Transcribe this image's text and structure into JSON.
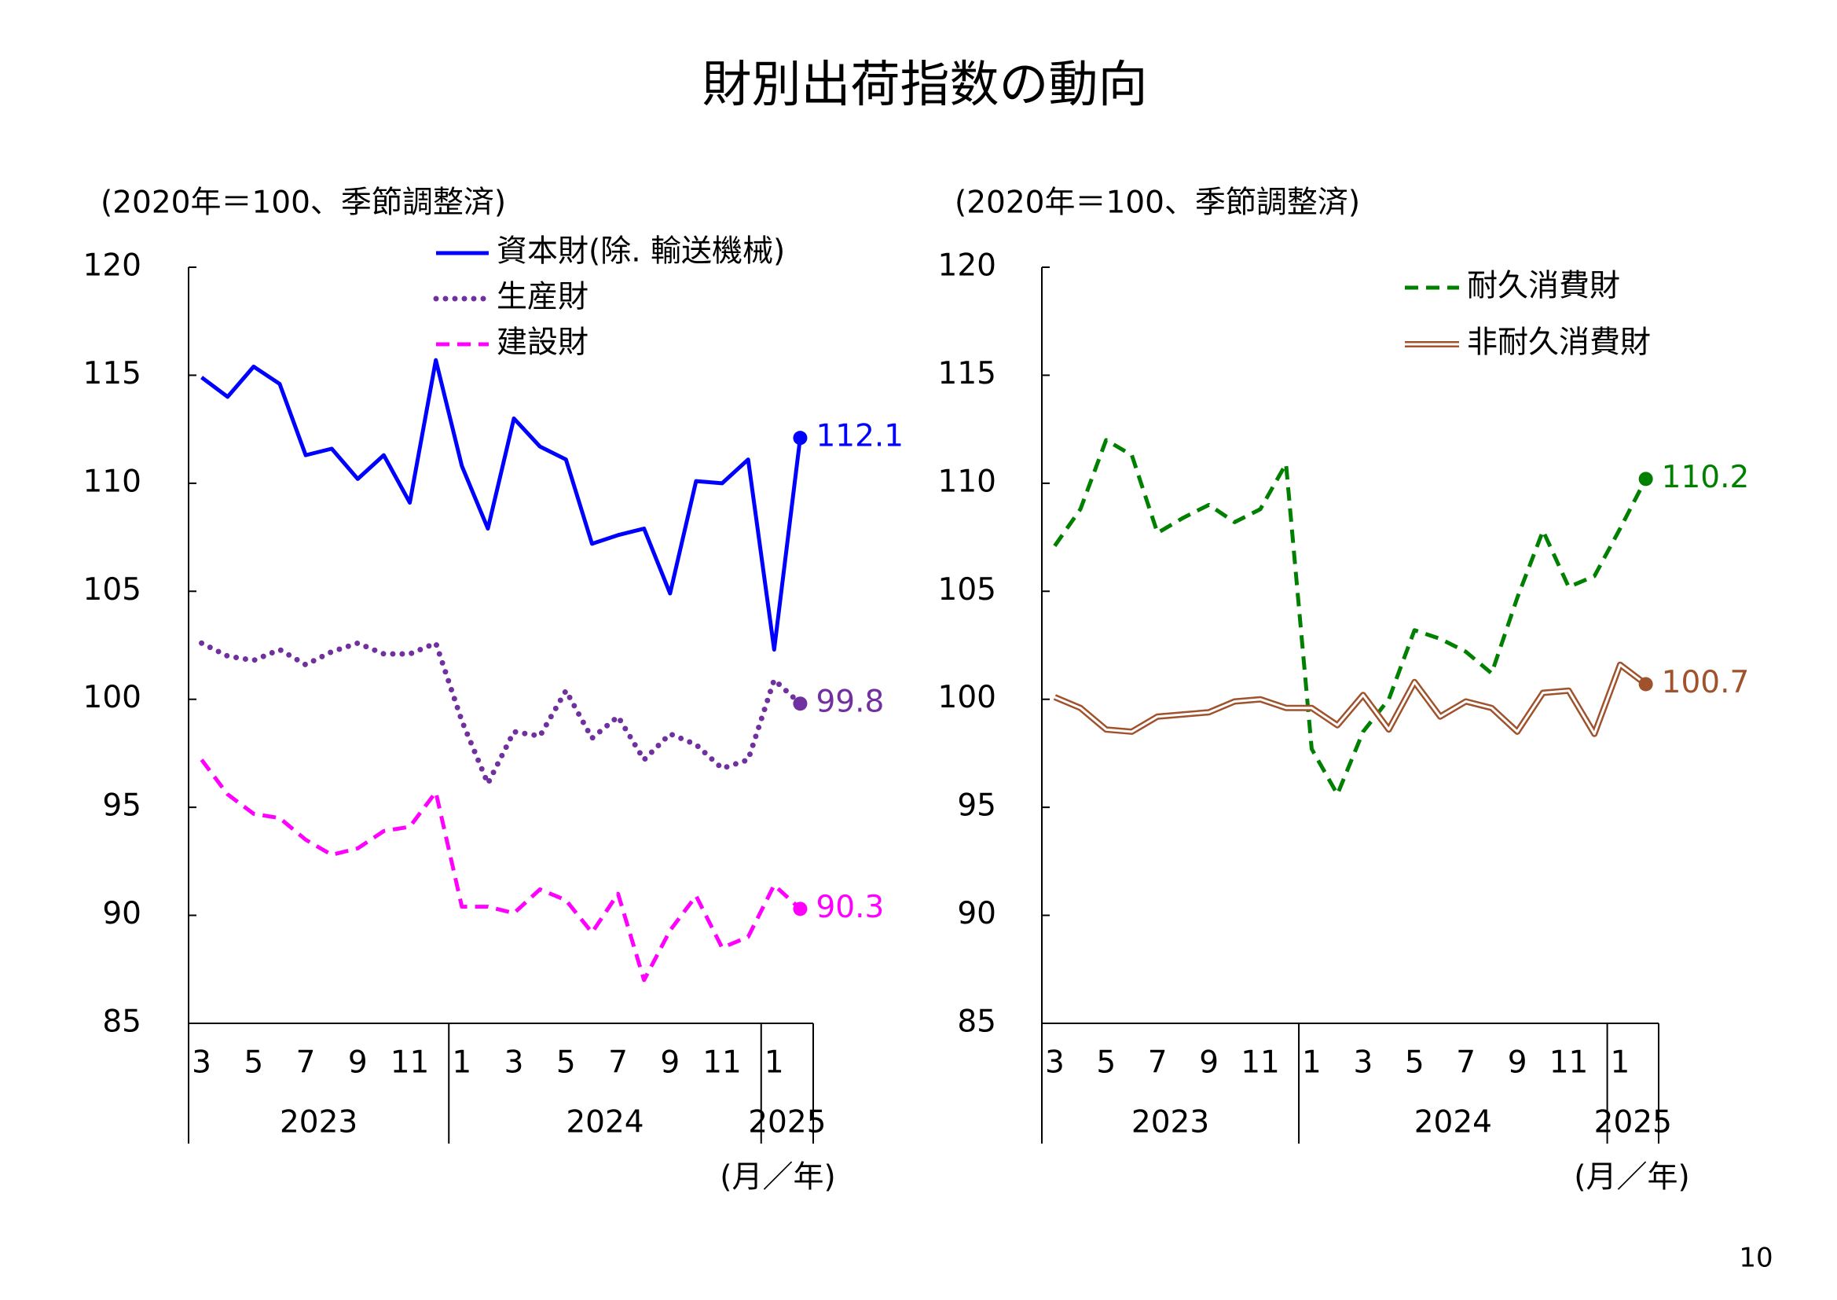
{
  "title": "財別出荷指数の動向",
  "page_number": "10",
  "chart_data": [
    {
      "type": "line",
      "unit_label": "(2020年＝100、季節調整済)",
      "x_axis_label": "(月／年)",
      "categories": [
        "3",
        null,
        "5",
        null,
        "7",
        null,
        "9",
        null,
        "11",
        null,
        "1",
        null,
        "3",
        null,
        "5",
        null,
        "7",
        null,
        "9",
        null,
        "11",
        null,
        "1",
        null
      ],
      "x_groups": [
        {
          "label": "2023",
          "count": 10
        },
        {
          "label": "2024",
          "count": 12
        },
        {
          "label": "2025",
          "count": 2
        }
      ],
      "ylim": [
        85,
        120
      ],
      "yticks": [
        85,
        90,
        95,
        100,
        105,
        110,
        115,
        120
      ],
      "series": [
        {
          "name": "資本財(除. 輸送機械)",
          "color": "#0000ff",
          "style": "solid",
          "values": [
            114.9,
            114.0,
            115.4,
            114.6,
            111.3,
            111.6,
            110.2,
            111.3,
            109.1,
            115.7,
            110.8,
            107.9,
            113.0,
            111.7,
            111.1,
            107.2,
            107.6,
            107.9,
            104.9,
            110.1,
            110.0,
            111.1,
            102.3,
            112.1
          ]
        },
        {
          "name": "生産財",
          "color": "#7030a0",
          "style": "dotted",
          "values": [
            102.6,
            102.0,
            101.8,
            102.3,
            101.6,
            102.2,
            102.6,
            102.1,
            102.1,
            102.6,
            99.0,
            96.1,
            98.5,
            98.3,
            100.4,
            98.2,
            99.2,
            97.2,
            98.4,
            97.9,
            96.8,
            97.2,
            100.9,
            99.8
          ]
        },
        {
          "name": "建設財",
          "color": "#ff00ff",
          "style": "dashed",
          "values": [
            97.2,
            95.6,
            94.7,
            94.5,
            93.5,
            92.8,
            93.1,
            93.9,
            94.1,
            95.7,
            90.4,
            90.4,
            90.1,
            91.2,
            90.7,
            89.2,
            91.0,
            87.0,
            89.3,
            90.9,
            88.5,
            89.0,
            91.4,
            90.3
          ]
        }
      ]
    },
    {
      "type": "line",
      "unit_label": "(2020年＝100、季節調整済)",
      "x_axis_label": "(月／年)",
      "categories": [
        "3",
        null,
        "5",
        null,
        "7",
        null,
        "9",
        null,
        "11",
        null,
        "1",
        null,
        "3",
        null,
        "5",
        null,
        "7",
        null,
        "9",
        null,
        "11",
        null,
        "1",
        null
      ],
      "x_groups": [
        {
          "label": "2023",
          "count": 10
        },
        {
          "label": "2024",
          "count": 12
        },
        {
          "label": "2025",
          "count": 2
        }
      ],
      "ylim": [
        85,
        120
      ],
      "yticks": [
        85,
        90,
        95,
        100,
        105,
        110,
        115,
        120
      ],
      "series": [
        {
          "name": "耐久消費財",
          "color": "#008000",
          "style": "dashed",
          "values": [
            107.1,
            108.8,
            112.0,
            111.3,
            107.7,
            108.4,
            109.0,
            108.2,
            108.8,
            110.9,
            97.7,
            95.6,
            98.5,
            100.0,
            103.2,
            102.8,
            102.2,
            101.2,
            104.7,
            107.8,
            105.2,
            105.7,
            107.9,
            110.2
          ]
        },
        {
          "name": "非耐久消費財",
          "color": "#a0522d",
          "style": "double",
          "values": [
            100.1,
            99.6,
            98.6,
            98.5,
            99.2,
            99.3,
            99.4,
            99.9,
            100.0,
            99.6,
            99.6,
            98.8,
            100.2,
            98.6,
            100.8,
            99.2,
            99.9,
            99.6,
            98.5,
            100.3,
            100.4,
            98.4,
            101.6,
            100.7
          ]
        }
      ]
    }
  ]
}
